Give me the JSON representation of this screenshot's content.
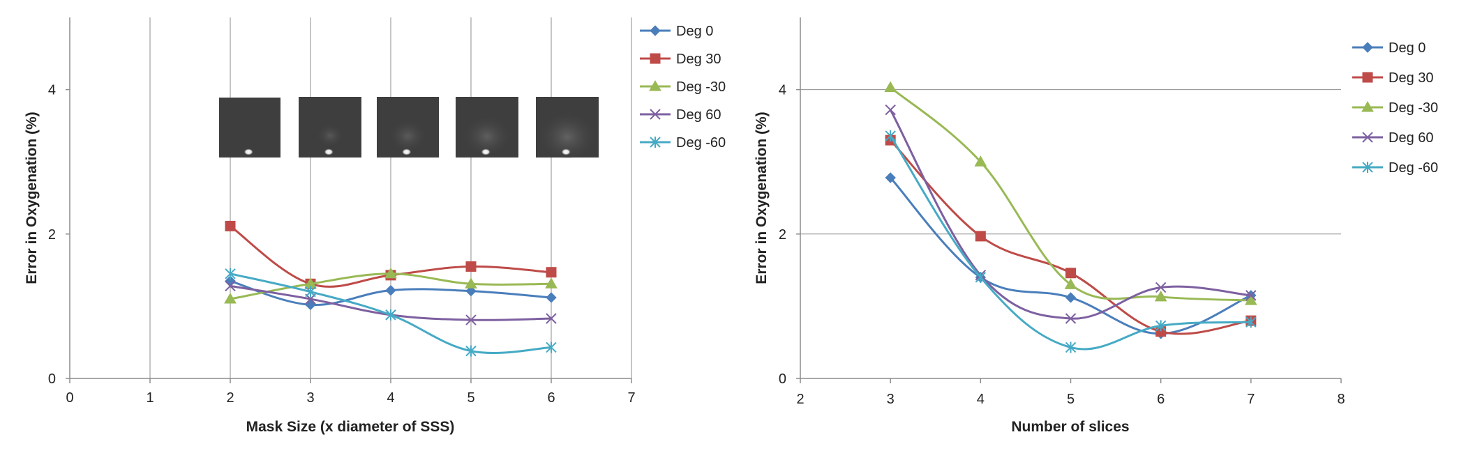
{
  "chart_data": [
    {
      "type": "line",
      "smooth": true,
      "title": "",
      "xlabel": "Mask Size (x diameter of SSS)",
      "ylabel": "Error in Oxygenation (%)",
      "xlim": [
        0,
        7
      ],
      "ylim": [
        0,
        5
      ],
      "xticks": [
        "0",
        "1",
        "2",
        "3",
        "4",
        "5",
        "6",
        "7"
      ],
      "yticks": [
        "0",
        "2",
        "4"
      ],
      "grid": "vertical",
      "legend": "right",
      "x": [
        2,
        3,
        4,
        5,
        6
      ],
      "series": [
        {
          "name": "Deg 0",
          "color": "#4A7EBB",
          "marker": "diamond",
          "values": [
            1.35,
            1.02,
            1.22,
            1.21,
            1.12
          ]
        },
        {
          "name": "Deg 30",
          "color": "#BE4B48",
          "marker": "square",
          "values": [
            2.11,
            1.31,
            1.43,
            1.55,
            1.47
          ]
        },
        {
          "name": "Deg -30",
          "color": "#98B954",
          "marker": "triangle",
          "values": [
            1.1,
            1.31,
            1.45,
            1.31,
            1.31
          ]
        },
        {
          "name": "Deg 60",
          "color": "#7D60A0",
          "marker": "x",
          "values": [
            1.28,
            1.1,
            0.88,
            0.81,
            0.83
          ]
        },
        {
          "name": "Deg -60",
          "color": "#46AAC5",
          "marker": "star",
          "values": [
            1.45,
            1.2,
            0.88,
            0.38,
            0.43
          ]
        }
      ]
    },
    {
      "type": "line",
      "smooth": true,
      "title": "",
      "xlabel": "Number of slices",
      "ylabel": "Error in Oxygenation (%)",
      "xlim": [
        2,
        8
      ],
      "ylim": [
        0,
        5
      ],
      "xticks": [
        "2",
        "3",
        "4",
        "5",
        "6",
        "7",
        "8"
      ],
      "yticks": [
        "0",
        "2",
        "4"
      ],
      "grid": "horizontal",
      "legend": "right",
      "x": [
        3,
        4,
        5,
        6,
        7
      ],
      "series": [
        {
          "name": "Deg 0",
          "color": "#4A7EBB",
          "marker": "diamond",
          "values": [
            2.78,
            1.4,
            1.12,
            0.62,
            1.15
          ]
        },
        {
          "name": "Deg 30",
          "color": "#BE4B48",
          "marker": "square",
          "values": [
            3.3,
            1.97,
            1.46,
            0.65,
            0.8
          ]
        },
        {
          "name": "Deg -30",
          "color": "#98B954",
          "marker": "triangle",
          "values": [
            4.03,
            3.0,
            1.3,
            1.13,
            1.08
          ]
        },
        {
          "name": "Deg 60",
          "color": "#7D60A0",
          "marker": "x",
          "values": [
            3.72,
            1.43,
            0.83,
            1.26,
            1.15
          ]
        },
        {
          "name": "Deg -60",
          "color": "#46AAC5",
          "marker": "star",
          "values": [
            3.36,
            1.4,
            0.43,
            0.73,
            0.78
          ]
        }
      ]
    }
  ]
}
